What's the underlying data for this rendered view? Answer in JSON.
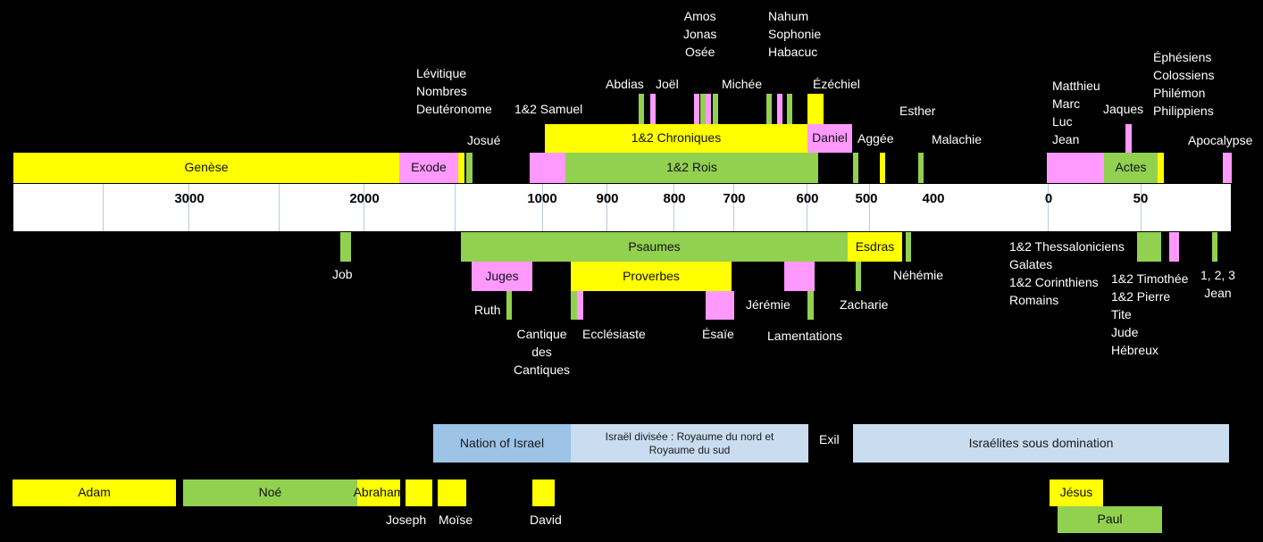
{
  "axis_ticks": [
    "3000",
    "2000",
    "1000",
    "900",
    "800",
    "700",
    "600",
    "500",
    "400",
    "0",
    "50"
  ],
  "books_above": {
    "genese": "Genèse",
    "exode": "Exode",
    "josue": "Josué",
    "lev_group": "Lévitique\nNombres\nDeutéronome",
    "samuel": "1&2 Samuel",
    "abdias": "Abdias",
    "joel": "Joël",
    "amos_group": "Amos\nJonas\nOsée",
    "michee": "Michée",
    "nahum_group": "Nahum\nSophonie\nHabacuc",
    "ezechiel": "Ézéchiel",
    "chroniques": "1&2 Chroniques",
    "daniel": "Daniel",
    "rois": "1&2 Rois",
    "aggee": "Aggée",
    "esther": "Esther",
    "malachie": "Malachie",
    "gospels": "Matthieu\nMarc\nLuc\nJean",
    "jaques": "Jaques",
    "epistles_prison": "Éphésiens\nColossiens\nPhilémon\nPhilippiens",
    "actes": "Actes",
    "apocalypse": "Apocalypse"
  },
  "books_below": {
    "job": "Job",
    "psaumes": "Psaumes",
    "esdras": "Esdras",
    "nehemie": "Néhémie",
    "juges": "Juges",
    "ruth": "Ruth",
    "cantique": "Cantique\ndes\nCantiques",
    "proverbes": "Proverbes",
    "ecclesiaste": "Ecclésiaste",
    "esaie": "Ésaïe",
    "jeremie": "Jérémie",
    "lamentations": "Lamentations",
    "zacharie": "Zacharie",
    "paul_epistles_1": "1&2 Thessaloniciens\nGalates\n1&2 Corinthiens\nRomains",
    "general_epistles": "1&2 Timothée\n1&2 Pierre\nTite\nJude\nHébreux",
    "jean_letters": "1, 2, 3\nJean"
  },
  "eras": {
    "nation": "Nation of Israel",
    "divided": "Israël divisée : Royaume du nord et\nRoyaume du sud",
    "exil": "Exil",
    "domination": "Israélites sous domination"
  },
  "people": {
    "adam": "Adam",
    "noe": "Noé",
    "abraham": "Abraham",
    "joseph": "Joseph",
    "moise": "Moïse",
    "david": "David",
    "jesus": "Jésus",
    "paul": "Paul"
  },
  "colors": {
    "yellow": "#ffff00",
    "green": "#92d050",
    "pink": "#ff99ff",
    "era_dark": "#9dc3e6",
    "era_light": "#c9dcf0"
  }
}
